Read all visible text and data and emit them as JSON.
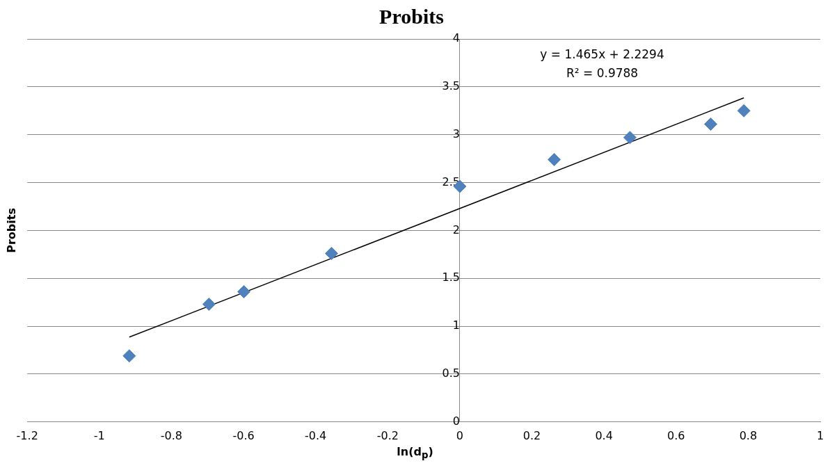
{
  "chart_data": {
    "type": "scatter",
    "title": "Probits",
    "xlabel": "ln(d$_{p}$)",
    "ylabel": "Probits",
    "xlim": [
      -1.2,
      1
    ],
    "xticks": [
      -1.2,
      -1,
      -0.8,
      -0.6,
      -0.4,
      -0.2,
      0,
      0.2,
      0.4,
      0.6,
      0.8,
      1
    ],
    "ylim": [
      0,
      4
    ],
    "yticks": [
      0,
      0.5,
      1,
      1.5,
      2,
      2.5,
      3,
      3.5,
      4
    ],
    "grid": "y",
    "legend": false,
    "x": [
      -0.917,
      -0.696,
      -0.599,
      -0.356,
      0,
      0.262,
      0.472,
      0.696,
      0.788
    ],
    "series": [
      {
        "type": "scatter",
        "color": "#4f81bd",
        "marker": "diamond",
        "values": [
          0.69,
          1.23,
          1.36,
          1.76,
          2.46,
          2.74,
          2.97,
          3.11,
          3.25
        ]
      },
      {
        "type": "line",
        "color": "#000000",
        "marker": "none",
        "line_style": "solid",
        "x": [
          -0.917,
          0.788
        ],
        "values": [
          0.886,
          3.384
        ]
      }
    ],
    "annotations": [
      "y = 1.465x + 2.2294",
      "R² = 0.9788"
    ]
  }
}
